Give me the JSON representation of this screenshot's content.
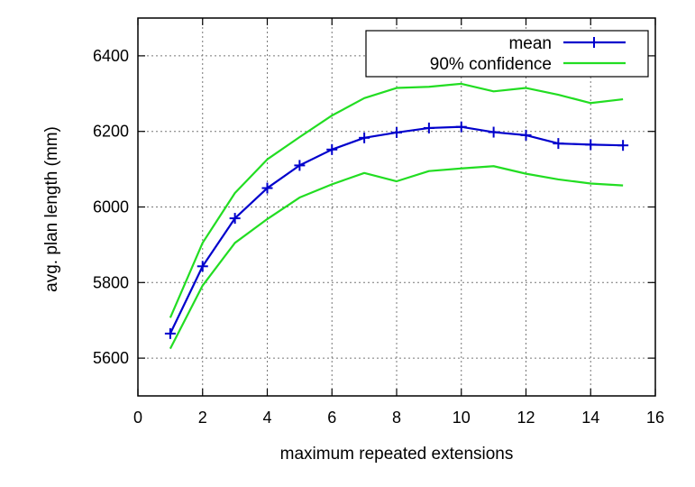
{
  "chart_data": {
    "type": "line",
    "title": "",
    "xlabel": "maximum repeated extensions",
    "ylabel": "avg. plan length (mm)",
    "xlim": [
      0,
      16
    ],
    "ylim": [
      5500,
      6500
    ],
    "xticks": [
      0,
      2,
      4,
      6,
      8,
      10,
      12,
      14,
      16
    ],
    "yticks": [
      5600,
      5800,
      6000,
      6200,
      6400
    ],
    "grid": true,
    "legend_position": "top-right",
    "series": [
      {
        "name": "mean",
        "color": "#0000cc",
        "marker": "plus",
        "x": [
          1,
          2,
          3,
          4,
          5,
          6,
          7,
          8,
          9,
          10,
          11,
          12,
          13,
          14,
          15
        ],
        "y": [
          5665,
          5843,
          5970,
          6050,
          6110,
          6152,
          6183,
          6197,
          6209,
          6212,
          6198,
          6190,
          6168,
          6165,
          6163
        ]
      },
      {
        "name": "90% confidence",
        "color": "#22dd22",
        "marker": "none",
        "x": [
          1,
          2,
          3,
          4,
          5,
          6,
          7,
          8,
          9,
          10,
          11,
          12,
          13,
          14,
          15
        ],
        "y": [
          5707,
          5905,
          6037,
          6126,
          6185,
          6242,
          6288,
          6315,
          6318,
          6326,
          6306,
          6315,
          6297,
          6275,
          6285
        ]
      },
      {
        "name": "",
        "color": "#22dd22",
        "marker": "none",
        "x": [
          1,
          2,
          3,
          4,
          5,
          6,
          7,
          8,
          9,
          10,
          11,
          12,
          13,
          14,
          15
        ],
        "y": [
          5625,
          5792,
          5905,
          5968,
          6025,
          6060,
          6090,
          6068,
          6095,
          6102,
          6108,
          6088,
          6073,
          6062,
          6057
        ]
      }
    ]
  }
}
